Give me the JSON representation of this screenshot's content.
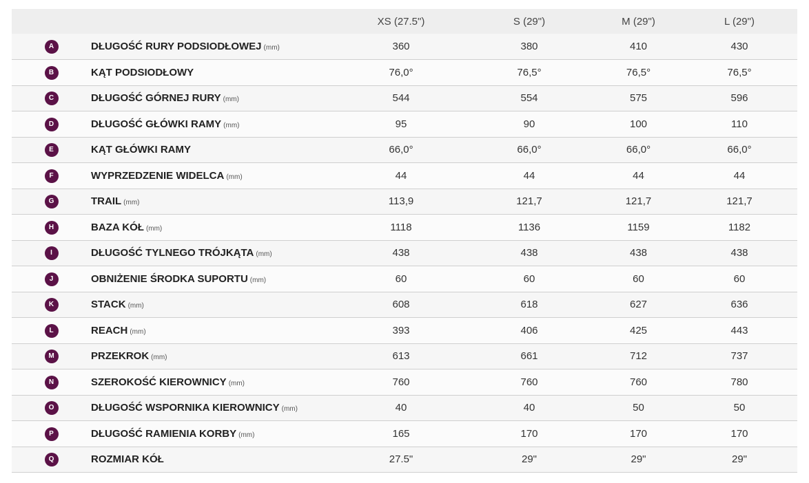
{
  "header": {
    "sizes": [
      "XS (27.5\")",
      "S (29\")",
      "M (29\")",
      "L (29\")"
    ]
  },
  "rows": [
    {
      "letter": "A",
      "label": "DŁUGOŚĆ RURY PODSIODŁOWEJ",
      "unit": "(mm)",
      "values": [
        "360",
        "380",
        "410",
        "430"
      ]
    },
    {
      "letter": "B",
      "label": "KĄT PODSIODŁOWY",
      "unit": "",
      "values": [
        "76,0°",
        "76,5°",
        "76,5°",
        "76,5°"
      ]
    },
    {
      "letter": "C",
      "label": "DŁUGOŚĆ GÓRNEJ RURY",
      "unit": "(mm)",
      "values": [
        "544",
        "554",
        "575",
        "596"
      ]
    },
    {
      "letter": "D",
      "label": "DŁUGOŚĆ GŁÓWKI RAMY",
      "unit": "(mm)",
      "values": [
        "95",
        "90",
        "100",
        "110"
      ]
    },
    {
      "letter": "E",
      "label": "KĄT GŁÓWKI RAMY",
      "unit": "",
      "values": [
        "66,0°",
        "66,0°",
        "66,0°",
        "66,0°"
      ]
    },
    {
      "letter": "F",
      "label": "WYPRZEDZENIE WIDELCA",
      "unit": "(mm)",
      "values": [
        "44",
        "44",
        "44",
        "44"
      ]
    },
    {
      "letter": "G",
      "label": "TRAIL",
      "unit": "(mm)",
      "values": [
        "113,9",
        "121,7",
        "121,7",
        "121,7"
      ]
    },
    {
      "letter": "H",
      "label": "BAZA KÓŁ",
      "unit": "(mm)",
      "values": [
        "1118",
        "1136",
        "1159",
        "1182"
      ]
    },
    {
      "letter": "I",
      "label": "DŁUGOŚĆ TYLNEGO TRÓJKĄTA",
      "unit": "(mm)",
      "values": [
        "438",
        "438",
        "438",
        "438"
      ]
    },
    {
      "letter": "J",
      "label": "OBNIŻENIE ŚRODKA SUPORTU",
      "unit": "(mm)",
      "values": [
        "60",
        "60",
        "60",
        "60"
      ]
    },
    {
      "letter": "K",
      "label": "STACK",
      "unit": "(mm)",
      "values": [
        "608",
        "618",
        "627",
        "636"
      ]
    },
    {
      "letter": "L",
      "label": "REACH",
      "unit": "(mm)",
      "values": [
        "393",
        "406",
        "425",
        "443"
      ]
    },
    {
      "letter": "M",
      "label": "PRZEKROK",
      "unit": "(mm)",
      "values": [
        "613",
        "661",
        "712",
        "737"
      ]
    },
    {
      "letter": "N",
      "label": "SZEROKOŚĆ KIEROWNICY",
      "unit": "(mm)",
      "values": [
        "760",
        "760",
        "760",
        "780"
      ]
    },
    {
      "letter": "O",
      "label": "DŁUGOŚĆ WSPORNIKA KIEROWNICY",
      "unit": "(mm)",
      "values": [
        "40",
        "40",
        "50",
        "50"
      ]
    },
    {
      "letter": "P",
      "label": "DŁUGOŚĆ RAMIENIA KORBY",
      "unit": "(mm)",
      "values": [
        "165",
        "170",
        "170",
        "170"
      ]
    },
    {
      "letter": "Q",
      "label": "ROZMIAR KÓŁ",
      "unit": "",
      "values": [
        "27.5\"",
        "29\"",
        "29\"",
        "29\""
      ]
    }
  ],
  "colors": {
    "badge": "#5b1247",
    "header_bg": "#eeeeee",
    "row_border": "#cfcfcf"
  }
}
